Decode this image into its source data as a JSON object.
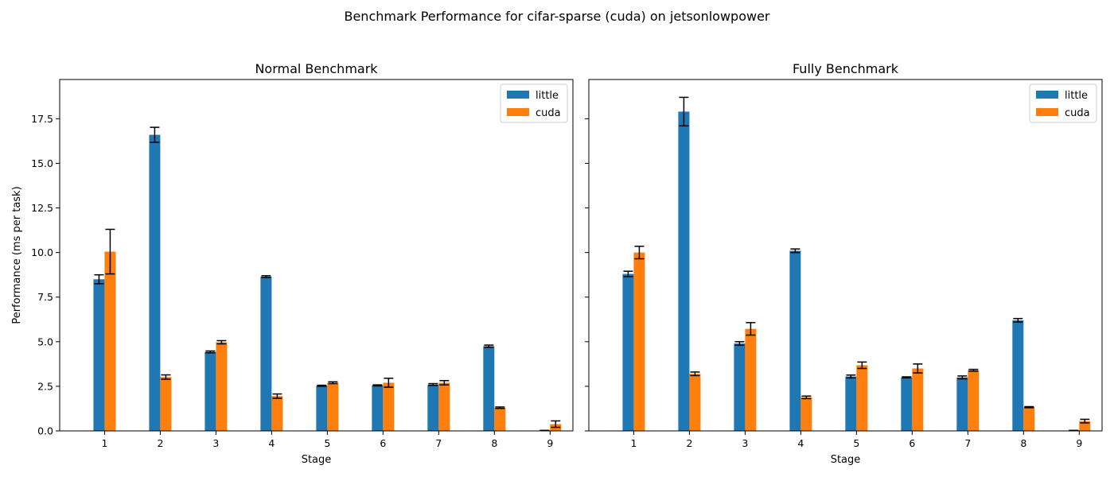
{
  "figure_title": "Benchmark Performance for cifar-sparse (cuda) on jetsonlowpower",
  "colors": {
    "little": "#1f77b4",
    "cuda": "#ff7f0e",
    "errorbar": "#000000",
    "axis": "#000000"
  },
  "chart_data": [
    {
      "type": "bar",
      "title": "Normal Benchmark",
      "xlabel": "Stage",
      "ylabel": "Performance (ms per task)",
      "ylim": [
        0,
        19.7
      ],
      "yticks": [
        "0.0",
        "2.5",
        "5.0",
        "7.5",
        "10.0",
        "12.5",
        "15.0",
        "17.5"
      ],
      "categories": [
        "1",
        "2",
        "3",
        "4",
        "5",
        "6",
        "7",
        "8",
        "9"
      ],
      "legend": {
        "placement": "top-right",
        "entries": [
          "little",
          "cuda"
        ]
      },
      "series": [
        {
          "name": "little",
          "values": [
            8.5,
            16.6,
            4.43,
            8.65,
            2.53,
            2.55,
            2.6,
            4.75,
            0.02
          ],
          "errors": [
            0.25,
            0.42,
            0.05,
            0.05,
            0.03,
            0.03,
            0.05,
            0.06,
            0.01
          ]
        },
        {
          "name": "cuda",
          "values": [
            10.05,
            3.02,
            4.97,
            1.95,
            2.7,
            2.7,
            2.7,
            1.3,
            0.38
          ],
          "errors": [
            1.25,
            0.12,
            0.09,
            0.12,
            0.05,
            0.25,
            0.12,
            0.04,
            0.18
          ]
        }
      ]
    },
    {
      "type": "bar",
      "title": "Fully Benchmark",
      "xlabel": "Stage",
      "ylabel": "",
      "ylim": [
        0,
        19.7
      ],
      "yticks": [
        "",
        "",
        "",
        "",
        "",
        "",
        "",
        ""
      ],
      "categories": [
        "1",
        "2",
        "3",
        "4",
        "5",
        "6",
        "7",
        "8",
        "9"
      ],
      "legend": {
        "placement": "top-right",
        "entries": [
          "little",
          "cuda"
        ]
      },
      "series": [
        {
          "name": "little",
          "values": [
            8.8,
            17.9,
            4.9,
            10.1,
            3.05,
            3.0,
            3.0,
            6.2,
            0.02
          ],
          "errors": [
            0.15,
            0.8,
            0.1,
            0.1,
            0.08,
            0.03,
            0.08,
            0.1,
            0.01
          ]
        },
        {
          "name": "cuda",
          "values": [
            10.0,
            3.2,
            5.72,
            1.88,
            3.68,
            3.5,
            3.4,
            1.33,
            0.55
          ],
          "errors": [
            0.35,
            0.1,
            0.35,
            0.07,
            0.18,
            0.25,
            0.05,
            0.03,
            0.1
          ]
        }
      ]
    }
  ]
}
